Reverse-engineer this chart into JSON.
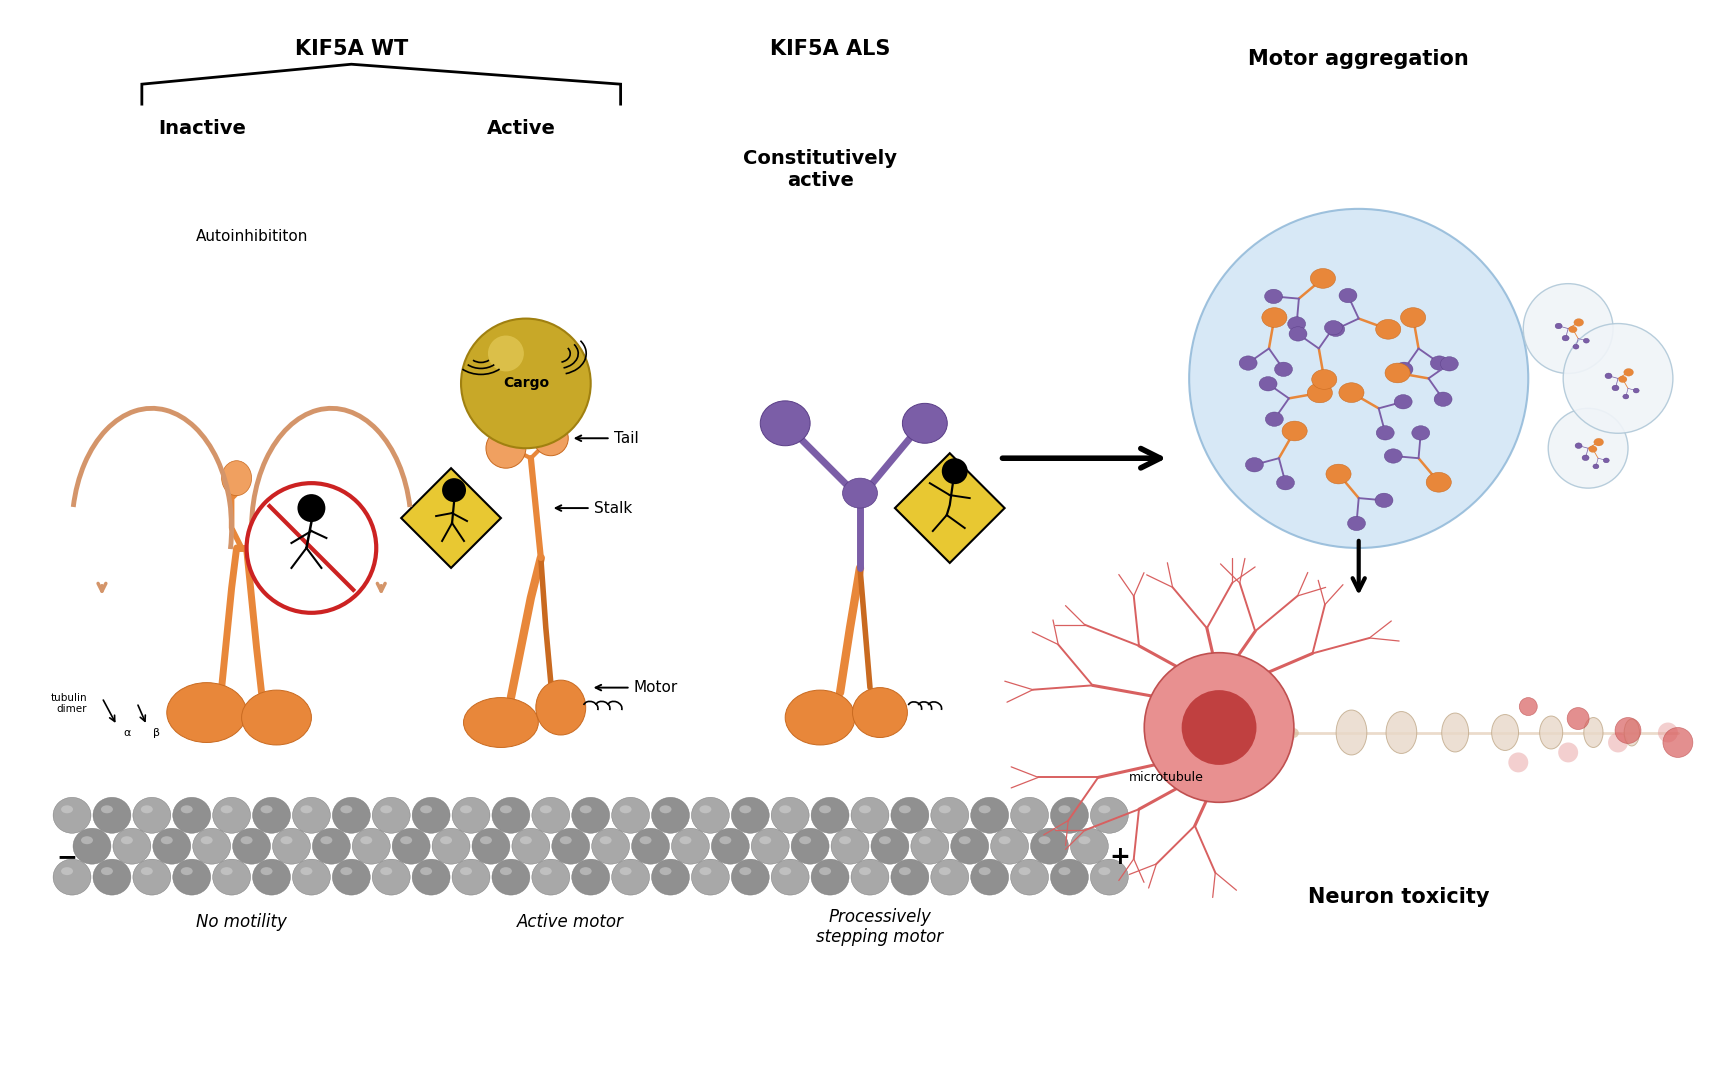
{
  "bg_color": "#ffffff",
  "orange": "#E8873A",
  "orange_dark": "#C96A20",
  "orange_light": "#F0A060",
  "gray_mt": "#B0B0B0",
  "gray_mt_dark": "#909090",
  "yellow_sign": "#E8C832",
  "purple": "#7B5EA7",
  "blue_circle": "#D0E4F5",
  "red": "#CC2222",
  "cargo_color": "#C8A828",
  "labels": {
    "kif5a_wt": "KIF5A WT",
    "kif5a_als": "KIF5A ALS",
    "inactive": "Inactive",
    "active": "Active",
    "constitutively_active": "Constitutively\nactive",
    "autoinhibiton": "Autoinhibititon",
    "cargo": "Cargo",
    "tail": "Tail",
    "stalk": "Stalk",
    "motor": "Motor",
    "tubulin_dimer": "tubulin\ndimer",
    "alpha": "α",
    "beta": "β",
    "no_motility": "No motility",
    "active_motor": "Active motor",
    "processively": "Processively\nstepping motor",
    "motor_aggregation": "Motor aggregation",
    "neuron_toxicity": "Neuron toxicity",
    "microtubule": "microtubule",
    "minus": "−",
    "plus": "+"
  }
}
